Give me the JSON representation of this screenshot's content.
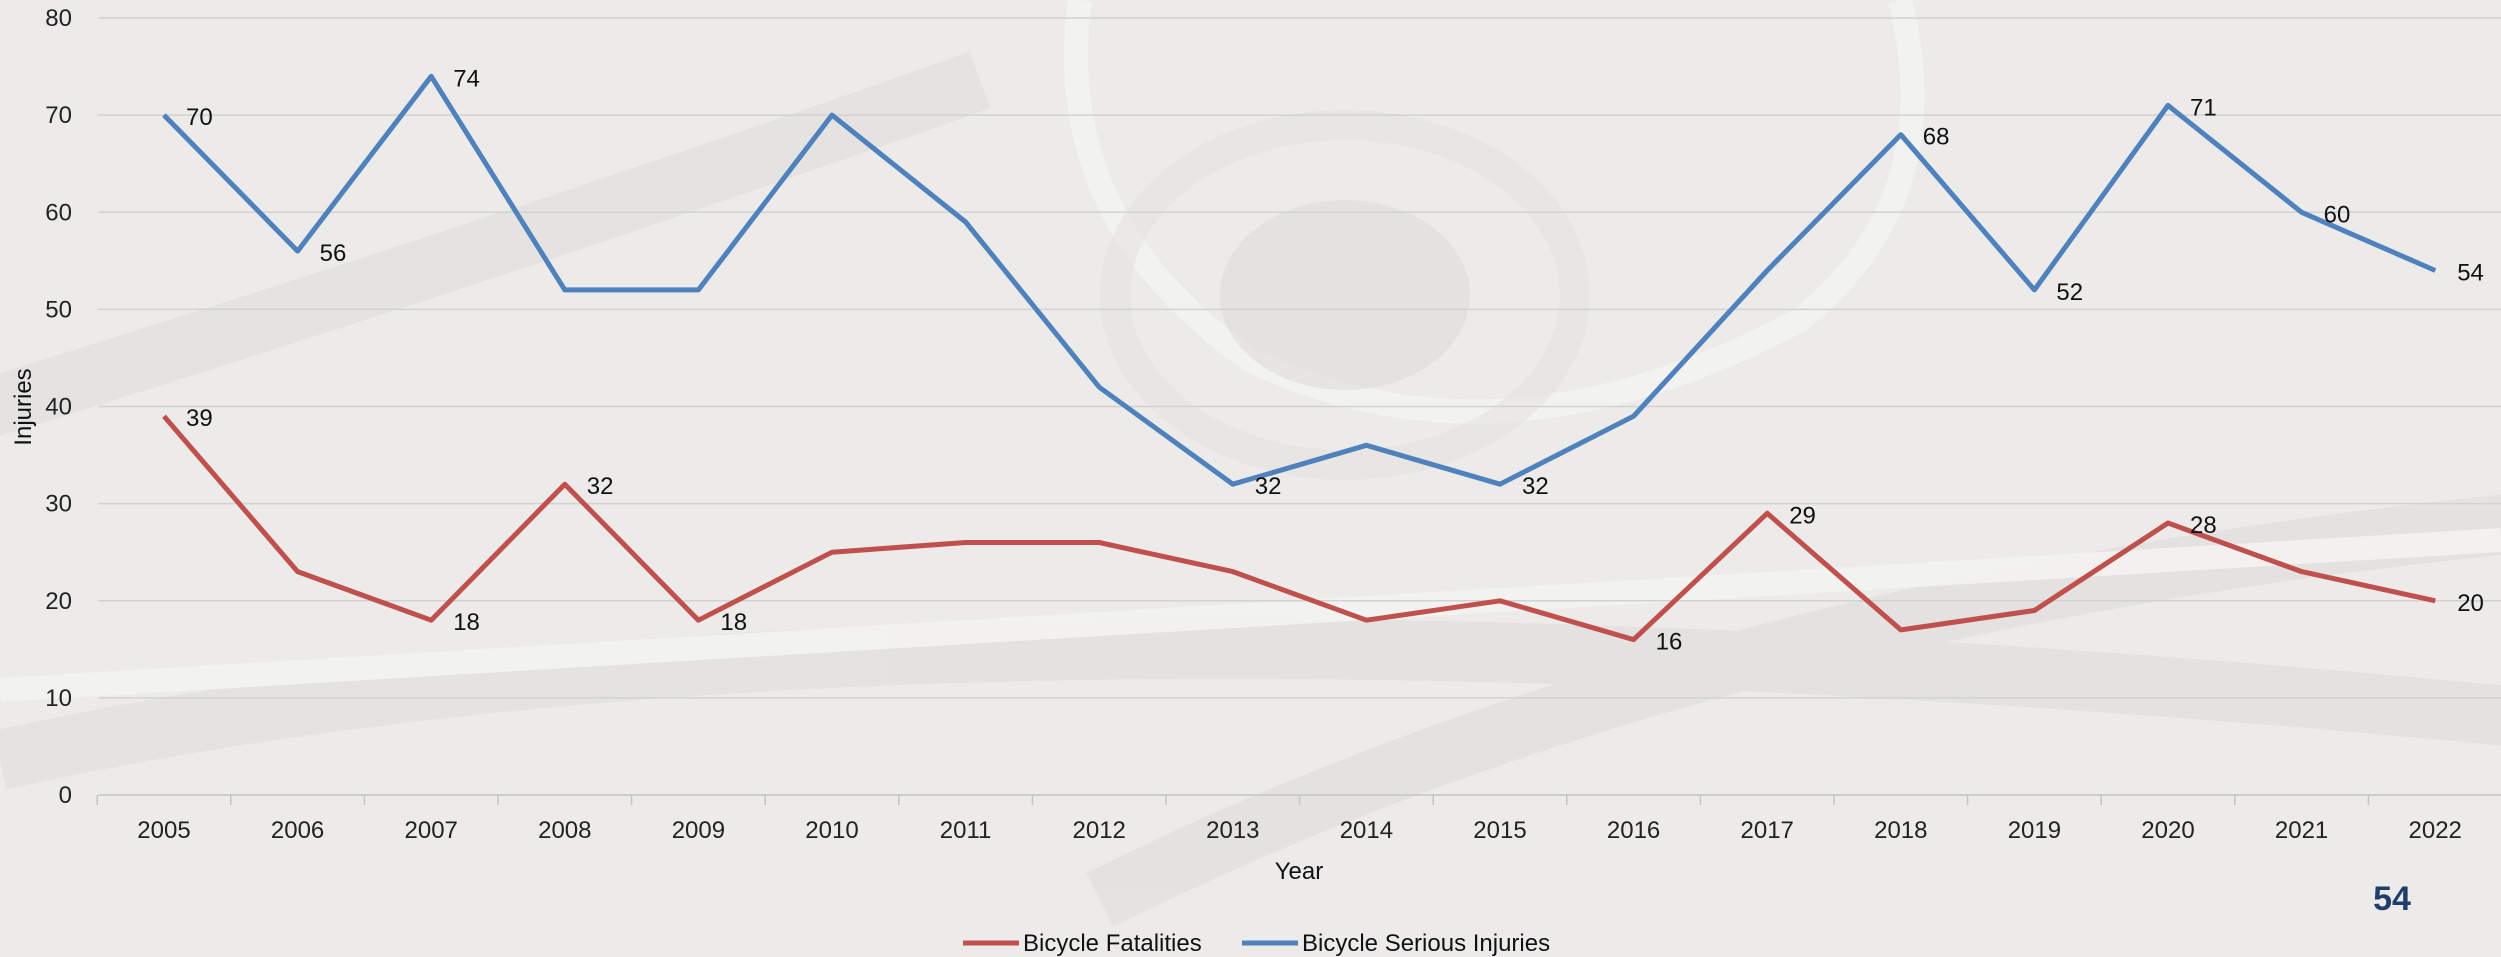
{
  "page": {
    "number": "54"
  },
  "chart_data": {
    "type": "line",
    "xlabel": "Year",
    "ylabel": "Injuries",
    "ylim": [
      0,
      80
    ],
    "yticks": [
      0,
      10,
      20,
      30,
      40,
      50,
      60,
      70,
      80
    ],
    "grid": true,
    "legend_position": "bottom",
    "categories": [
      "2005",
      "2006",
      "2007",
      "2008",
      "2009",
      "2010",
      "2011",
      "2012",
      "2013",
      "2014",
      "2015",
      "2016",
      "2017",
      "2018",
      "2019",
      "2020",
      "2021",
      "2022"
    ],
    "series": [
      {
        "name": "Bicycle Fatalities",
        "color": "#c0504d",
        "values": [
          39,
          23,
          18,
          32,
          18,
          25,
          26,
          26,
          23,
          18,
          20,
          16,
          29,
          17,
          19,
          28,
          23,
          20
        ],
        "labels": [
          "39",
          "",
          "18",
          "32",
          "18",
          "",
          "",
          "",
          "",
          "",
          "",
          "16",
          "29",
          "",
          "",
          "28",
          "",
          "20"
        ]
      },
      {
        "name": "Bicycle Serious Injuries",
        "color": "#4f81bd",
        "values": [
          70,
          56,
          74,
          52,
          52,
          70,
          59,
          42,
          32,
          36,
          32,
          39,
          54,
          68,
          52,
          71,
          60,
          54
        ],
        "labels": [
          "70",
          "56",
          "74",
          "",
          "",
          "",
          "",
          "",
          "32",
          "",
          "32",
          "",
          "",
          "68",
          "52",
          "71",
          "60",
          "54"
        ]
      }
    ]
  }
}
